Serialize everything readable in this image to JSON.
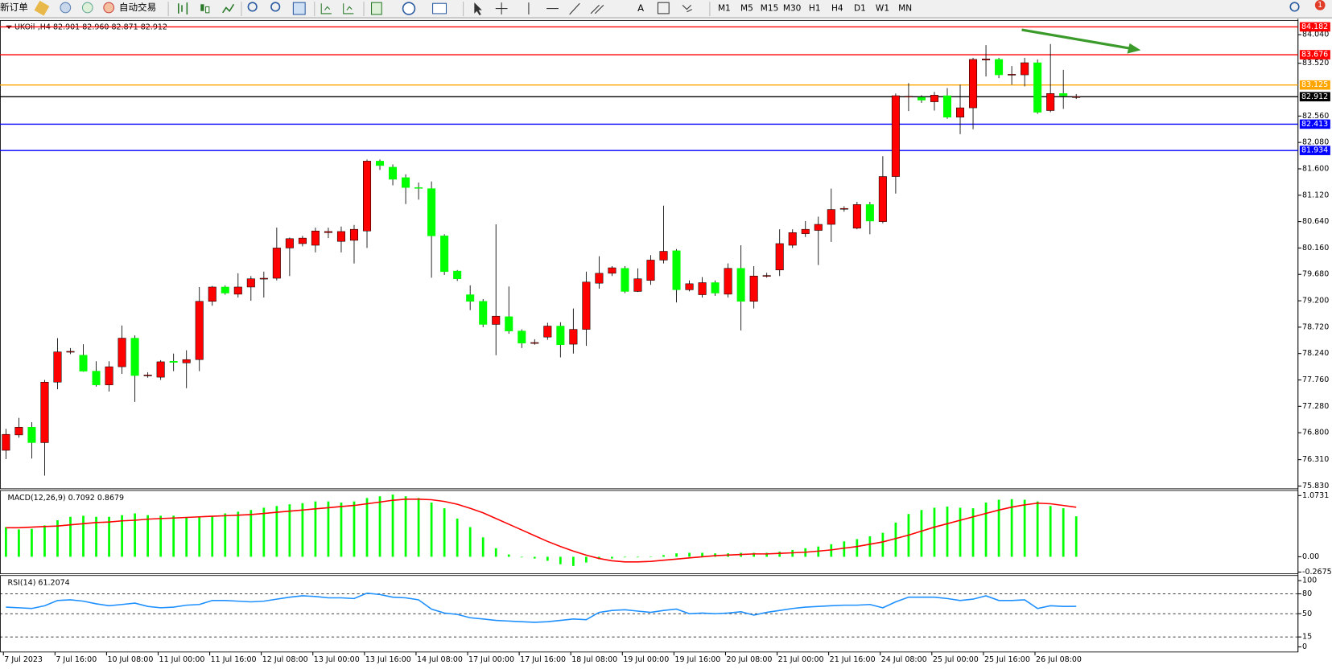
{
  "toolbar": {
    "new_order": "新订单",
    "auto_trading": "自动交易",
    "timeframes": [
      "M1",
      "M5",
      "M15",
      "M30",
      "H1",
      "H4",
      "D1",
      "W1",
      "MN"
    ],
    "notifications": "1"
  },
  "chart_data": [
    {
      "type": "candlestick",
      "title": "UKOil-,H4 82.901 82.960 82.871 82.912",
      "categories": [
        "7 Jul 2023",
        null,
        null,
        null,
        "7 Jul 16:00",
        null,
        null,
        null,
        "10 Jul 08:00",
        null,
        null,
        null,
        "11 Jul 00:00",
        null,
        null,
        null,
        "11 Jul 16:00",
        null,
        null,
        null,
        "12 Jul 08:00",
        null,
        null,
        null,
        "13 Jul 00:00",
        null,
        null,
        null,
        "13 Jul 16:00",
        null,
        null,
        null,
        "14 Jul 08:00",
        null,
        null,
        null,
        "17 Jul 00:00",
        null,
        null,
        null,
        "17 Jul 16:00",
        null,
        null,
        null,
        "18 Jul 08:00",
        null,
        null,
        null,
        "19 Jul 00:00",
        null,
        null,
        null,
        "19 Jul 16:00",
        null,
        null,
        null,
        "20 Jul 08:00",
        null,
        null,
        null,
        "21 Jul 00:00",
        null,
        null,
        null,
        "21 Jul 16:00",
        null,
        null,
        null,
        "24 Jul 08:00",
        null,
        null,
        null,
        "25 Jul 00:00",
        null,
        null,
        null,
        "25 Jul 16:00",
        null,
        null,
        null,
        "26 Jul 08:00",
        null,
        null,
        null
      ],
      "open": [
        76.48,
        76.76,
        76.9,
        76.62,
        77.72,
        78.27,
        78.21,
        77.92,
        77.67,
        78.0,
        78.52,
        77.84,
        77.81,
        78.1,
        78.07,
        78.13,
        79.19,
        79.45,
        79.32,
        79.45,
        79.6,
        79.61,
        80.16,
        80.24,
        80.21,
        80.44,
        80.28,
        80.3,
        80.47,
        81.74,
        81.63,
        81.44,
        81.26,
        81.24,
        80.38,
        79.74,
        79.31,
        79.19,
        78.77,
        78.91,
        78.65,
        78.44,
        78.54,
        78.74,
        78.41,
        78.68,
        79.52,
        79.7,
        79.79,
        79.37,
        79.57,
        79.94,
        80.11,
        79.4,
        79.31,
        79.53,
        79.32,
        79.79,
        79.19,
        79.65,
        79.76,
        80.21,
        80.42,
        80.48,
        80.59,
        80.87,
        80.52,
        80.95,
        80.64,
        81.46,
        82.91,
        82.9,
        82.82,
        82.93,
        82.54,
        82.71,
        83.58,
        83.59,
        83.31,
        83.31,
        83.53,
        82.66,
        82.97,
        82.901
      ],
      "high": [
        76.87,
        77.07,
        76.99,
        77.76,
        78.52,
        78.34,
        78.41,
        78.1,
        78.1,
        78.75,
        78.57,
        77.9,
        78.12,
        78.24,
        78.3,
        79.45,
        79.47,
        79.48,
        79.7,
        79.65,
        79.73,
        80.53,
        80.35,
        80.38,
        80.53,
        80.53,
        80.55,
        80.58,
        81.77,
        81.77,
        81.68,
        81.5,
        81.35,
        81.37,
        80.41,
        79.76,
        79.48,
        79.23,
        80.59,
        79.46,
        78.68,
        78.5,
        78.8,
        78.81,
        79.06,
        79.73,
        80.01,
        79.83,
        79.83,
        79.79,
        80.03,
        80.93,
        80.14,
        79.57,
        79.63,
        79.57,
        79.88,
        80.21,
        79.83,
        79.71,
        80.5,
        80.5,
        80.65,
        80.73,
        81.24,
        80.92,
        81.0,
        81.0,
        81.83,
        82.97,
        83.16,
        82.94,
        83.0,
        83.07,
        83.13,
        83.62,
        83.85,
        83.62,
        83.47,
        83.62,
        83.59,
        83.87,
        83.4,
        82.96
      ],
      "low": [
        76.32,
        76.71,
        76.33,
        76.02,
        77.59,
        78.23,
        77.91,
        77.64,
        77.55,
        77.87,
        77.36,
        77.8,
        77.76,
        77.92,
        77.61,
        77.92,
        79.11,
        79.31,
        79.26,
        79.2,
        79.26,
        79.57,
        79.65,
        80.19,
        80.08,
        80.34,
        80.08,
        79.88,
        80.16,
        81.58,
        81.3,
        80.96,
        81.04,
        79.62,
        79.67,
        79.56,
        79.03,
        78.72,
        78.21,
        78.6,
        78.34,
        78.4,
        78.49,
        78.17,
        78.24,
        78.38,
        79.42,
        79.65,
        79.34,
        79.36,
        79.49,
        79.88,
        79.17,
        79.37,
        79.26,
        79.29,
        79.26,
        78.66,
        79.06,
        79.62,
        79.65,
        80.16,
        80.36,
        79.85,
        80.27,
        80.82,
        80.5,
        80.41,
        80.61,
        81.15,
        82.65,
        82.8,
        82.66,
        82.51,
        82.23,
        82.32,
        83.28,
        83.25,
        83.13,
        83.1,
        82.6,
        82.63,
        82.69,
        82.871
      ],
      "close": [
        76.77,
        76.9,
        76.62,
        77.72,
        78.27,
        78.28,
        77.92,
        77.67,
        78.0,
        78.52,
        77.84,
        77.85,
        78.09,
        78.08,
        78.13,
        79.19,
        79.45,
        79.34,
        79.45,
        79.6,
        79.61,
        80.16,
        80.33,
        80.34,
        80.47,
        80.46,
        80.46,
        80.5,
        81.74,
        81.66,
        81.41,
        81.26,
        81.25,
        80.38,
        79.73,
        79.6,
        79.19,
        78.77,
        78.92,
        78.65,
        78.43,
        78.44,
        78.74,
        78.4,
        78.68,
        79.54,
        79.7,
        79.8,
        79.37,
        79.6,
        79.94,
        80.1,
        79.4,
        79.51,
        79.53,
        79.34,
        79.79,
        79.19,
        79.65,
        79.66,
        80.24,
        80.44,
        80.5,
        80.59,
        80.86,
        80.88,
        80.95,
        80.65,
        81.46,
        82.93,
        82.92,
        82.85,
        82.94,
        82.54,
        82.71,
        83.59,
        83.6,
        83.31,
        83.32,
        83.53,
        82.63,
        82.97,
        82.93,
        82.912
      ],
      "up_color": "#ff0000",
      "down_color": "#00ff00",
      "ylim": [
        75.78,
        84.3
      ],
      "yticks": [
        {
          "value": 84.04,
          "label": "84.040"
        },
        {
          "value": 83.52,
          "label": "83.520"
        },
        {
          "value": 82.56,
          "label": "82.560"
        },
        {
          "value": 82.08,
          "label": "82.080"
        },
        {
          "value": 81.6,
          "label": "81.600"
        },
        {
          "value": 81.12,
          "label": "81.120"
        },
        {
          "value": 80.64,
          "label": "80.640"
        },
        {
          "value": 80.16,
          "label": "80.160"
        },
        {
          "value": 79.68,
          "label": "79.680"
        },
        {
          "value": 79.2,
          "label": "79.200"
        },
        {
          "value": 78.72,
          "label": "78.720"
        },
        {
          "value": 78.24,
          "label": "78.240"
        },
        {
          "value": 77.76,
          "label": "77.760"
        },
        {
          "value": 77.28,
          "label": "77.280"
        },
        {
          "value": 76.8,
          "label": "76.800"
        },
        {
          "value": 76.31,
          "label": "76.310"
        },
        {
          "value": 75.83,
          "label": "75.830"
        }
      ],
      "levels": [
        {
          "value": 84.182,
          "color": "#ff0000"
        },
        {
          "value": 83.676,
          "color": "#ff0000"
        },
        {
          "value": 83.125,
          "color": "#ffa500"
        },
        {
          "value": 82.912,
          "color": "#000000"
        },
        {
          "value": 82.413,
          "color": "#0000ff"
        },
        {
          "value": 81.934,
          "color": "#0000ff"
        }
      ]
    },
    {
      "type": "macd",
      "title": "MACD(12,26,9) 0.7092 0.8679",
      "ylim": [
        -0.298,
        1.162
      ],
      "yticks": [
        1.0731,
        {
          "value": 0,
          "label": "0.00"
        },
        -0.2675
      ],
      "series": [
        {
          "type": "bar",
          "color": "#00ff00",
          "values": [
            0.52,
            0.48,
            0.49,
            0.55,
            0.64,
            0.7,
            0.72,
            0.7,
            0.7,
            0.73,
            0.76,
            0.73,
            0.72,
            0.72,
            0.69,
            0.69,
            0.72,
            0.76,
            0.79,
            0.82,
            0.86,
            0.89,
            0.92,
            0.94,
            0.97,
            0.97,
            0.95,
            0.97,
            1.03,
            1.06,
            1.09,
            1.06,
            1.03,
            0.95,
            0.85,
            0.67,
            0.52,
            0.34,
            0.15,
            0.04,
            -0.01,
            -0.03,
            -0.07,
            -0.13,
            -0.16,
            -0.1,
            -0.04,
            -0.03,
            -0.01,
            -0.01,
            0.0,
            0.03,
            0.06,
            0.07,
            0.07,
            0.06,
            0.06,
            0.07,
            0.07,
            0.07,
            0.09,
            0.12,
            0.15,
            0.18,
            0.22,
            0.27,
            0.31,
            0.36,
            0.42,
            0.6,
            0.75,
            0.82,
            0.86,
            0.88,
            0.86,
            0.85,
            0.95,
            1.0,
            1.01,
            1.0,
            0.97,
            0.89,
            0.85,
            0.7092
          ]
        },
        {
          "type": "line",
          "color": "#ff0000",
          "values": [
            0.51,
            0.51,
            0.52,
            0.53,
            0.54,
            0.56,
            0.58,
            0.6,
            0.61,
            0.63,
            0.64,
            0.66,
            0.67,
            0.68,
            0.69,
            0.7,
            0.71,
            0.72,
            0.73,
            0.74,
            0.76,
            0.78,
            0.8,
            0.82,
            0.84,
            0.86,
            0.88,
            0.9,
            0.93,
            0.96,
            0.99,
            1.01,
            1.01,
            1.0,
            0.97,
            0.92,
            0.85,
            0.77,
            0.67,
            0.57,
            0.47,
            0.37,
            0.27,
            0.18,
            0.1,
            0.03,
            -0.03,
            -0.07,
            -0.09,
            -0.09,
            -0.08,
            -0.06,
            -0.04,
            -0.02,
            0.0,
            0.02,
            0.03,
            0.04,
            0.05,
            0.05,
            0.06,
            0.07,
            0.08,
            0.1,
            0.12,
            0.15,
            0.18,
            0.22,
            0.26,
            0.32,
            0.38,
            0.45,
            0.52,
            0.58,
            0.64,
            0.7,
            0.76,
            0.82,
            0.87,
            0.91,
            0.94,
            0.93,
            0.9,
            0.8679
          ]
        }
      ]
    },
    {
      "type": "line",
      "title": "RSI(14) 61.2074",
      "ylim": [
        -7.7,
        107.7
      ],
      "yticks": [
        100,
        80,
        50,
        15,
        0
      ],
      "levels": [
        80,
        50,
        15
      ],
      "series": [
        {
          "color": "#1e90ff",
          "values": [
            60,
            59,
            58,
            62,
            70,
            71,
            69,
            65,
            62,
            64,
            66,
            61,
            59,
            60,
            63,
            64,
            70,
            70,
            69,
            68,
            69,
            72,
            75,
            77,
            76,
            74,
            74,
            73,
            81,
            79,
            75,
            74,
            71,
            57,
            51,
            49,
            44,
            42,
            40,
            39,
            38,
            37,
            38,
            40,
            42,
            41,
            52,
            55,
            56,
            54,
            52,
            55,
            57,
            50,
            51,
            50,
            51,
            53,
            48,
            52,
            55,
            58,
            60,
            61,
            62,
            63,
            63,
            64,
            59,
            68,
            75,
            75,
            75,
            73,
            70,
            72,
            77,
            70,
            70,
            71,
            58,
            62,
            61,
            61.2074
          ]
        }
      ]
    }
  ]
}
